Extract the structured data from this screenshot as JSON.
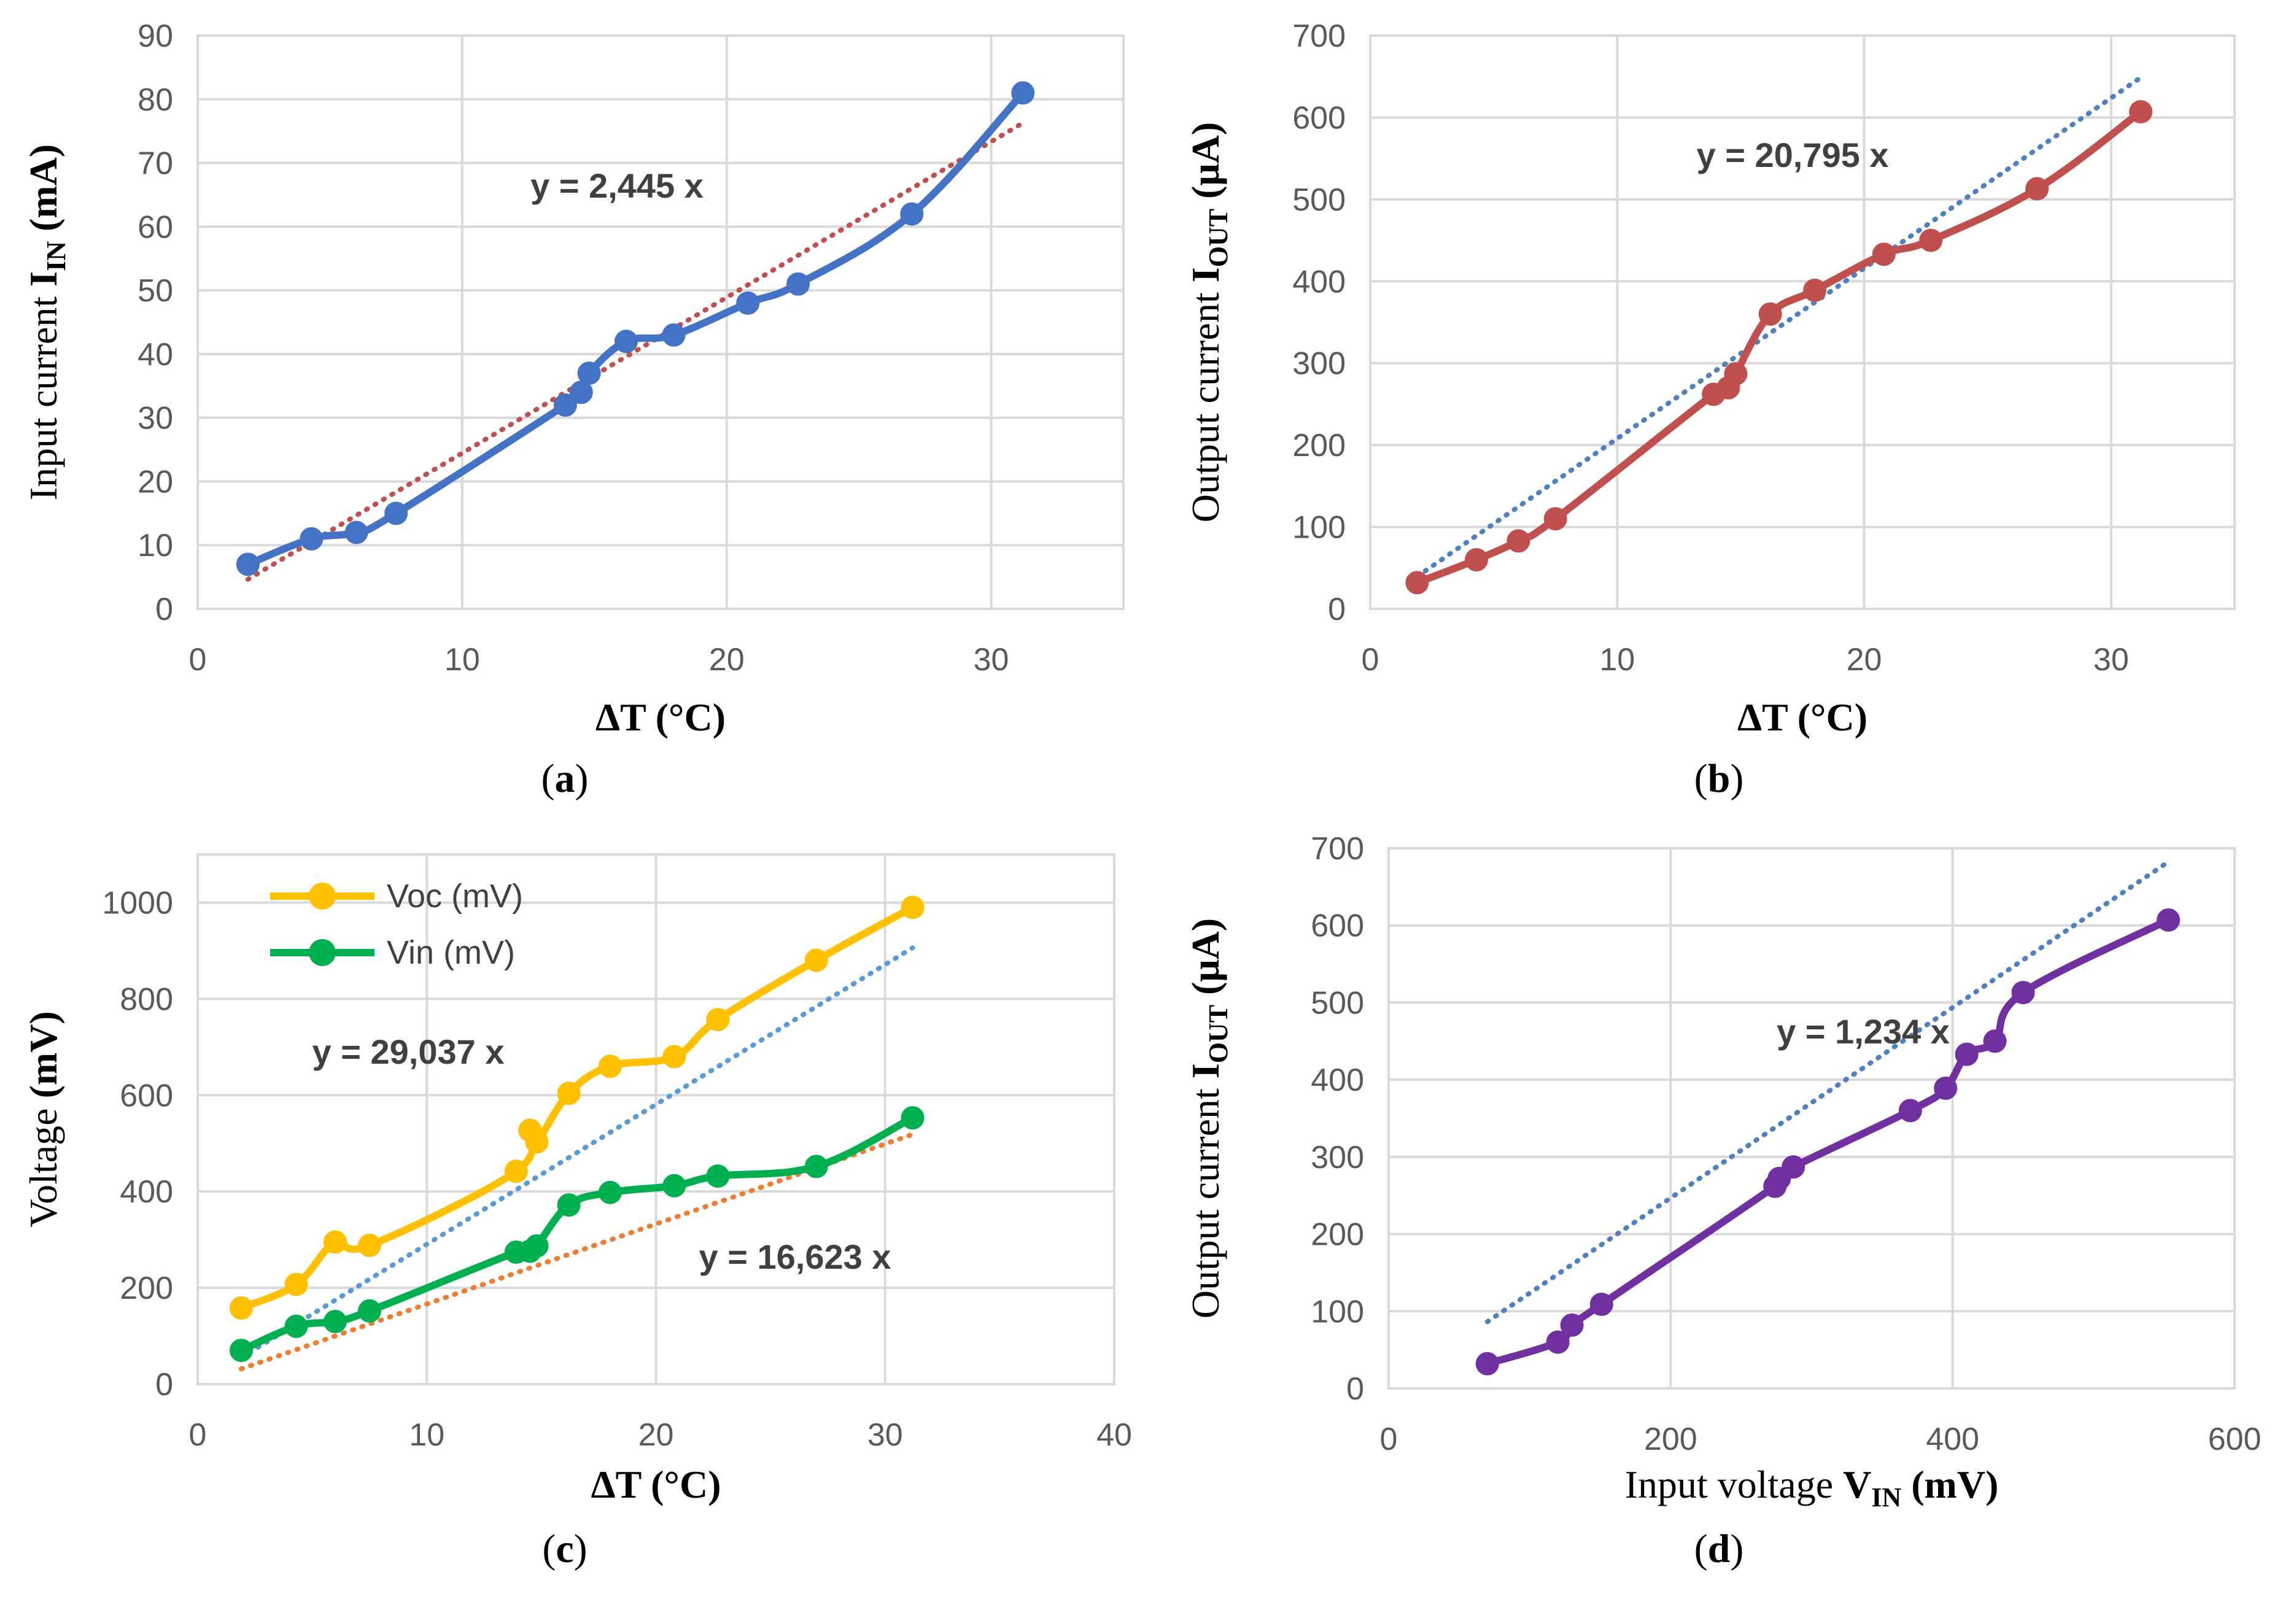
{
  "chart_data": [
    {
      "id": "a",
      "type": "line",
      "caption": "a",
      "xlabel": "ΔT (°C)",
      "ylabel": {
        "prefix": "Input current ",
        "symbol": "I",
        "sub": "IN",
        "unit": " (mA)"
      },
      "xlim": [
        0,
        35
      ],
      "ylim": [
        0,
        90
      ],
      "xticks": [
        0,
        10,
        20,
        30
      ],
      "yticks": [
        0,
        10,
        20,
        30,
        40,
        50,
        60,
        70,
        80,
        90
      ],
      "series": [
        {
          "name": "Input current",
          "color": "#4472c4",
          "trend_color": "#c0504d",
          "trend_slope": 2.445,
          "x": [
            1.9,
            4.3,
            6.0,
            7.5,
            13.9,
            14.5,
            14.8,
            16.2,
            18.0,
            20.8,
            22.7,
            27.0,
            31.2
          ],
          "y": [
            7,
            11,
            12,
            15,
            32,
            34,
            37,
            42,
            43,
            48,
            51,
            62,
            81
          ]
        }
      ],
      "equations": [
        {
          "text": "y = 2,445 x"
        }
      ]
    },
    {
      "id": "b",
      "type": "line",
      "caption": "b",
      "xlabel": "ΔT (°C)",
      "ylabel": {
        "prefix": "Output current ",
        "symbol": "I",
        "sub": "OUT",
        "unit": " (μA)"
      },
      "xlim": [
        0,
        35
      ],
      "ylim": [
        0,
        700
      ],
      "xticks": [
        0,
        10,
        20,
        30
      ],
      "yticks": [
        0,
        100,
        200,
        300,
        400,
        500,
        600,
        700
      ],
      "series": [
        {
          "name": "Output current",
          "color": "#c0504d",
          "trend_color": "#4f81bd",
          "trend_slope": 20.795,
          "x": [
            1.9,
            4.3,
            6.0,
            7.5,
            13.9,
            14.5,
            14.8,
            16.2,
            18.0,
            20.8,
            22.7,
            27.0,
            31.2
          ],
          "y": [
            32,
            60,
            83,
            110,
            262,
            270,
            287,
            360,
            389,
            433,
            450,
            513,
            607
          ]
        }
      ],
      "equations": [
        {
          "text": "y = 20,795 x"
        }
      ]
    },
    {
      "id": "c",
      "type": "line",
      "caption": "c",
      "xlabel": "ΔT (°C)",
      "ylabel": {
        "prefix": "Voltage ",
        "symbol": "",
        "sub": "",
        "unit": "(mV)"
      },
      "xlim": [
        0,
        40
      ],
      "ylim": [
        0,
        1100
      ],
      "xticks": [
        0,
        10,
        20,
        30,
        40
      ],
      "yticks": [
        0,
        200,
        400,
        600,
        800,
        1000
      ],
      "legend": [
        "Voc (mV)",
        "Vin (mV)"
      ],
      "series": [
        {
          "name": "Voc (mV)",
          "color": "#ffc000",
          "trend_color": "#5b9bd5",
          "trend_slope": 29.037,
          "x": [
            1.9,
            4.3,
            6.0,
            7.5,
            13.9,
            14.5,
            14.8,
            16.2,
            18.0,
            20.8,
            22.7,
            27.0,
            31.2
          ],
          "y": [
            158,
            207,
            295,
            288,
            442,
            527,
            503,
            604,
            660,
            680,
            757,
            880,
            990
          ]
        },
        {
          "name": "Vin (mV)",
          "color": "#00b050",
          "trend_color": "#ed7d31",
          "trend_slope": 16.623,
          "x": [
            1.9,
            4.3,
            6.0,
            7.5,
            13.9,
            14.5,
            14.8,
            16.2,
            18.0,
            20.8,
            22.7,
            27.0,
            31.2
          ],
          "y": [
            70,
            120,
            130,
            152,
            274,
            276,
            287,
            372,
            398,
            412,
            432,
            452,
            553
          ]
        }
      ],
      "equations": [
        {
          "text": "y = 29,037 x"
        },
        {
          "text": "y = 16,623 x"
        }
      ]
    },
    {
      "id": "d",
      "type": "line",
      "caption": "d",
      "xlabel": {
        "prefix": "Input voltage ",
        "symbol": "V",
        "sub": "IN",
        "unit": " (mV)"
      },
      "ylabel": {
        "prefix": "Output current ",
        "symbol": "I",
        "sub": "OUT",
        "unit": " (μA)"
      },
      "xlim": [
        0,
        600
      ],
      "ylim": [
        0,
        700
      ],
      "xticks": [
        0,
        200,
        400,
        600
      ],
      "yticks": [
        0,
        100,
        200,
        300,
        400,
        500,
        600,
        700
      ],
      "series": [
        {
          "name": "Output current vs input voltage",
          "color": "#7030a0",
          "trend_color": "#4f81bd",
          "trend_slope": 1.234,
          "x": [
            70,
            120,
            130,
            151,
            274,
            277,
            287,
            370,
            395,
            410,
            430,
            450,
            553
          ],
          "y": [
            32,
            60,
            82,
            109,
            262,
            272,
            287,
            360,
            389,
            433,
            450,
            513,
            607
          ]
        }
      ],
      "equations": [
        {
          "text": "y = 1,234 x"
        }
      ]
    }
  ]
}
